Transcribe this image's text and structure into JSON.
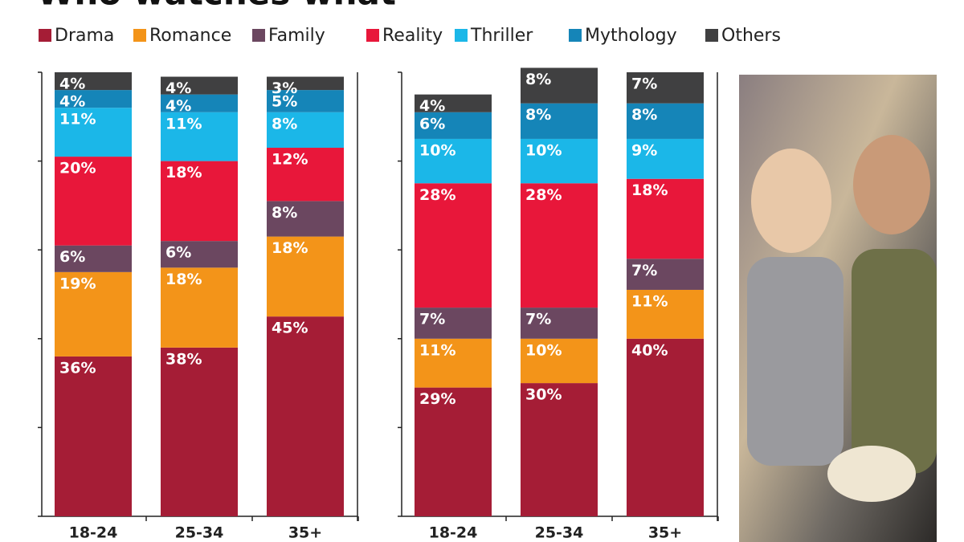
{
  "chart_data": [
    {
      "type": "stacked-bar",
      "title": "Who watches what",
      "categories": [
        "18-24",
        "25-34",
        "35+"
      ],
      "ylim": [
        0,
        100
      ],
      "yticks": [
        0,
        20,
        40,
        60,
        80,
        100
      ],
      "series": [
        {
          "name": "Drama",
          "color": "#a51d36",
          "values": [
            36,
            38,
            45
          ],
          "value_labels": [
            "36%",
            "38%",
            "45%"
          ]
        },
        {
          "name": "Romance",
          "color": "#f39419",
          "values": [
            19,
            18,
            18
          ],
          "value_labels": [
            "19%",
            "18%",
            "18%"
          ]
        },
        {
          "name": "Family",
          "color": "#6b4760",
          "values": [
            6,
            6,
            8
          ],
          "value_labels": [
            "6%",
            "6%",
            "8%"
          ]
        },
        {
          "name": "Reality",
          "color": "#e8173a",
          "values": [
            20,
            18,
            12
          ],
          "value_labels": [
            "20%",
            "18%",
            "12%"
          ]
        },
        {
          "name": "Thriller",
          "color": "#1bb7e8",
          "values": [
            11,
            11,
            8
          ],
          "value_labels": [
            "11%",
            "11%",
            "8%"
          ]
        },
        {
          "name": "Mythology",
          "color": "#1585b8",
          "values": [
            4,
            4,
            5
          ],
          "value_labels": [
            "4%",
            "4%",
            "5%"
          ]
        },
        {
          "name": "Others",
          "color": "#404041",
          "values": [
            4,
            4,
            3
          ],
          "value_labels": [
            "4%",
            "4%",
            "3%"
          ]
        }
      ]
    },
    {
      "type": "stacked-bar",
      "categories": [
        "18-24",
        "25-34",
        "35+"
      ],
      "ylim": [
        0,
        100
      ],
      "yticks": [
        0,
        20,
        40,
        60,
        80,
        100
      ],
      "series": [
        {
          "color": "#a51d36",
          "values": [
            29,
            30,
            40
          ],
          "value_labels": [
            "29%",
            "30%",
            "40%"
          ]
        },
        {
          "color": "#f39419",
          "values": [
            11,
            10,
            11
          ],
          "value_labels": [
            "11%",
            "10%",
            "11%"
          ]
        },
        {
          "color": "#6b4760",
          "values": [
            7,
            7,
            7
          ],
          "value_labels": [
            "7%",
            "7%",
            "7%"
          ]
        },
        {
          "color": "#e8173a",
          "values": [
            28,
            28,
            18
          ],
          "value_labels": [
            "28%",
            "28%",
            "18%"
          ]
        },
        {
          "color": "#1bb7e8",
          "values": [
            10,
            10,
            9
          ],
          "value_labels": [
            "10%",
            "10%",
            "9%"
          ]
        },
        {
          "color": "#1585b8",
          "values": [
            6,
            8,
            8
          ],
          "value_labels": [
            "6%",
            "8%",
            "8%"
          ]
        },
        {
          "color": "#404041",
          "values": [
            4,
            8,
            7
          ],
          "value_labels": [
            "4%",
            "8%",
            "7%"
          ]
        }
      ]
    }
  ]
}
